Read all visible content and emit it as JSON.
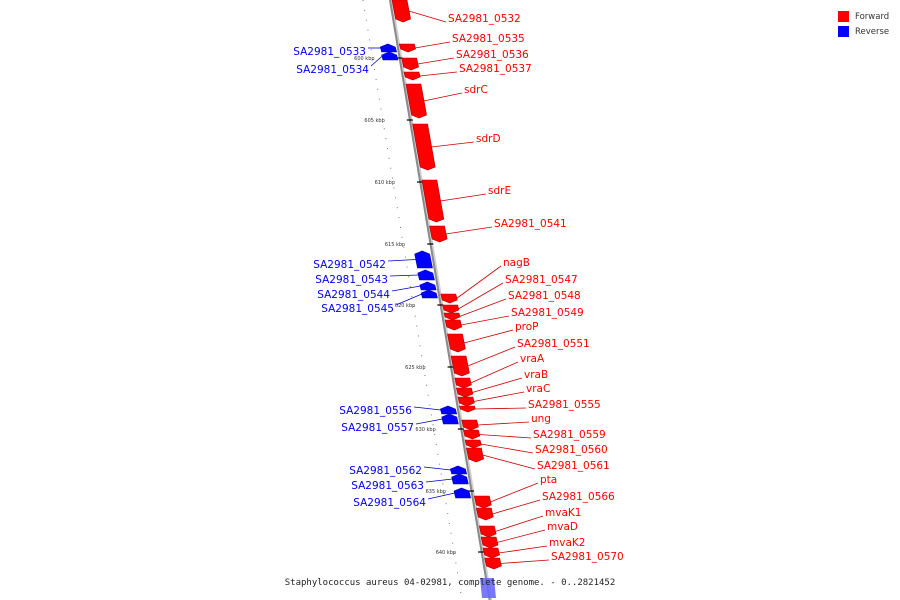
{
  "legend": {
    "items": [
      {
        "label": "Forward",
        "color": "#ff0000"
      },
      {
        "label": "Reverse",
        "color": "#0000ff"
      }
    ]
  },
  "caption": "Staphylococcus aureus 04-02981, complete genome. - 0..2821452",
  "colors": {
    "forward": "#ff0000",
    "reverse": "#0000ff",
    "backbone": "#999999",
    "line_forward": "#cc0000",
    "line_reverse": "#0000cc"
  },
  "scale": {
    "ticks": [
      "600 kbp",
      "605 kbp",
      "610 kbp",
      "615 kbp",
      "620 kbp",
      "625 kbp",
      "630 kbp",
      "635 kbp",
      "640 kbp"
    ]
  },
  "forward_genes": [
    "SA2981_0532",
    "SA2981_0535",
    "SA2981_0536",
    "SA2981_0537",
    "sdrC",
    "sdrD",
    "sdrE",
    "SA2981_0541",
    "nagB",
    "SA2981_0547",
    "SA2981_0548",
    "SA2981_0549",
    "proP",
    "SA2981_0551",
    "vraA",
    "vraB",
    "vraC",
    "SA2981_0555",
    "ung",
    "SA2981_0559",
    "SA2981_0560",
    "SA2981_0561",
    "pta",
    "SA2981_0566",
    "mvaK1",
    "mvaD",
    "mvaK2",
    "SA2981_0570"
  ],
  "reverse_genes": [
    "SA2981_0533",
    "SA2981_0534",
    "SA2981_0542",
    "SA2981_0543",
    "SA2981_0544",
    "SA2981_0545",
    "SA2981_0556",
    "SA2981_0557",
    "SA2981_0562",
    "SA2981_0563",
    "SA2981_0564"
  ]
}
